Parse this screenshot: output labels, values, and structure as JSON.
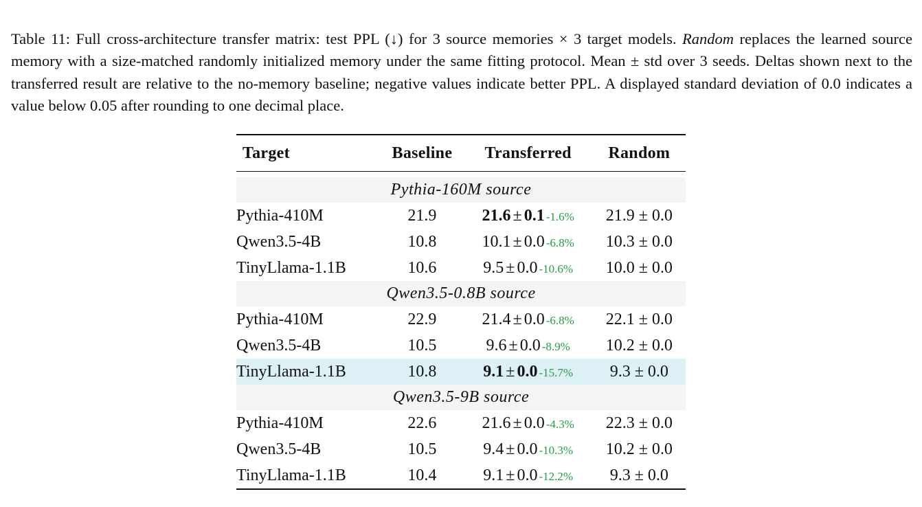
{
  "caption": {
    "prefix": "Table 11: Full cross-architecture transfer matrix: test PPL (↓) for 3 source memories × 3 target models. ",
    "italic": "Random",
    "suffix": " replaces the learned source memory with a size-matched randomly initialized memory under the same fitting protocol. Mean ± std over 3 seeds. Deltas shown next to the transferred result are relative to the no-memory baseline; negative values indicate better PPL. A displayed standard deviation of 0.0 indicates a value below 0.05 after rounding to one decimal place."
  },
  "table": {
    "headers": [
      "Target",
      "Baseline",
      "Transferred",
      "Random"
    ],
    "groups": [
      {
        "title": "Pythia-160M source",
        "rows": [
          {
            "target": "Pythia-410M",
            "baseline": "21.9",
            "mean": "21.6",
            "std": "0.1",
            "delta": "-1.6%",
            "random": "21.9 ± 0.0",
            "bold": true,
            "highlight": false
          },
          {
            "target": "Qwen3.5-4B",
            "baseline": "10.8",
            "mean": "10.1",
            "std": "0.0",
            "delta": "-6.8%",
            "random": "10.3 ± 0.0",
            "bold": false,
            "highlight": false
          },
          {
            "target": "TinyLlama-1.1B",
            "baseline": "10.6",
            "mean": "9.5",
            "std": "0.0",
            "delta": "-10.6%",
            "random": "10.0 ± 0.0",
            "bold": false,
            "highlight": false
          }
        ]
      },
      {
        "title": "Qwen3.5-0.8B source",
        "rows": [
          {
            "target": "Pythia-410M",
            "baseline": "22.9",
            "mean": "21.4",
            "std": "0.0",
            "delta": "-6.8%",
            "random": "22.1 ± 0.0",
            "bold": false,
            "highlight": false
          },
          {
            "target": "Qwen3.5-4B",
            "baseline": "10.5",
            "mean": "9.6",
            "std": "0.0",
            "delta": "-8.9%",
            "random": "10.2 ± 0.0",
            "bold": false,
            "highlight": false
          },
          {
            "target": "TinyLlama-1.1B",
            "baseline": "10.8",
            "mean": "9.1",
            "std": "0.0",
            "delta": "-15.7%",
            "random": "9.3 ± 0.0",
            "bold": true,
            "highlight": true
          }
        ]
      },
      {
        "title": "Qwen3.5-9B source",
        "rows": [
          {
            "target": "Pythia-410M",
            "baseline": "22.6",
            "mean": "21.6",
            "std": "0.0",
            "delta": "-4.3%",
            "random": "22.3 ± 0.0",
            "bold": false,
            "highlight": false
          },
          {
            "target": "Qwen3.5-4B",
            "baseline": "10.5",
            "mean": "9.4",
            "std": "0.0",
            "delta": "-10.3%",
            "random": "10.2 ± 0.0",
            "bold": false,
            "highlight": false
          },
          {
            "target": "TinyLlama-1.1B",
            "baseline": "10.4",
            "mean": "9.1",
            "std": "0.0",
            "delta": "-12.2%",
            "random": "9.3 ± 0.0",
            "bold": false,
            "highlight": false
          }
        ]
      }
    ]
  },
  "colors": {
    "delta": "#22a03f",
    "highlight_row": "#ddf0f5",
    "group_row": "#f4f4f4"
  }
}
